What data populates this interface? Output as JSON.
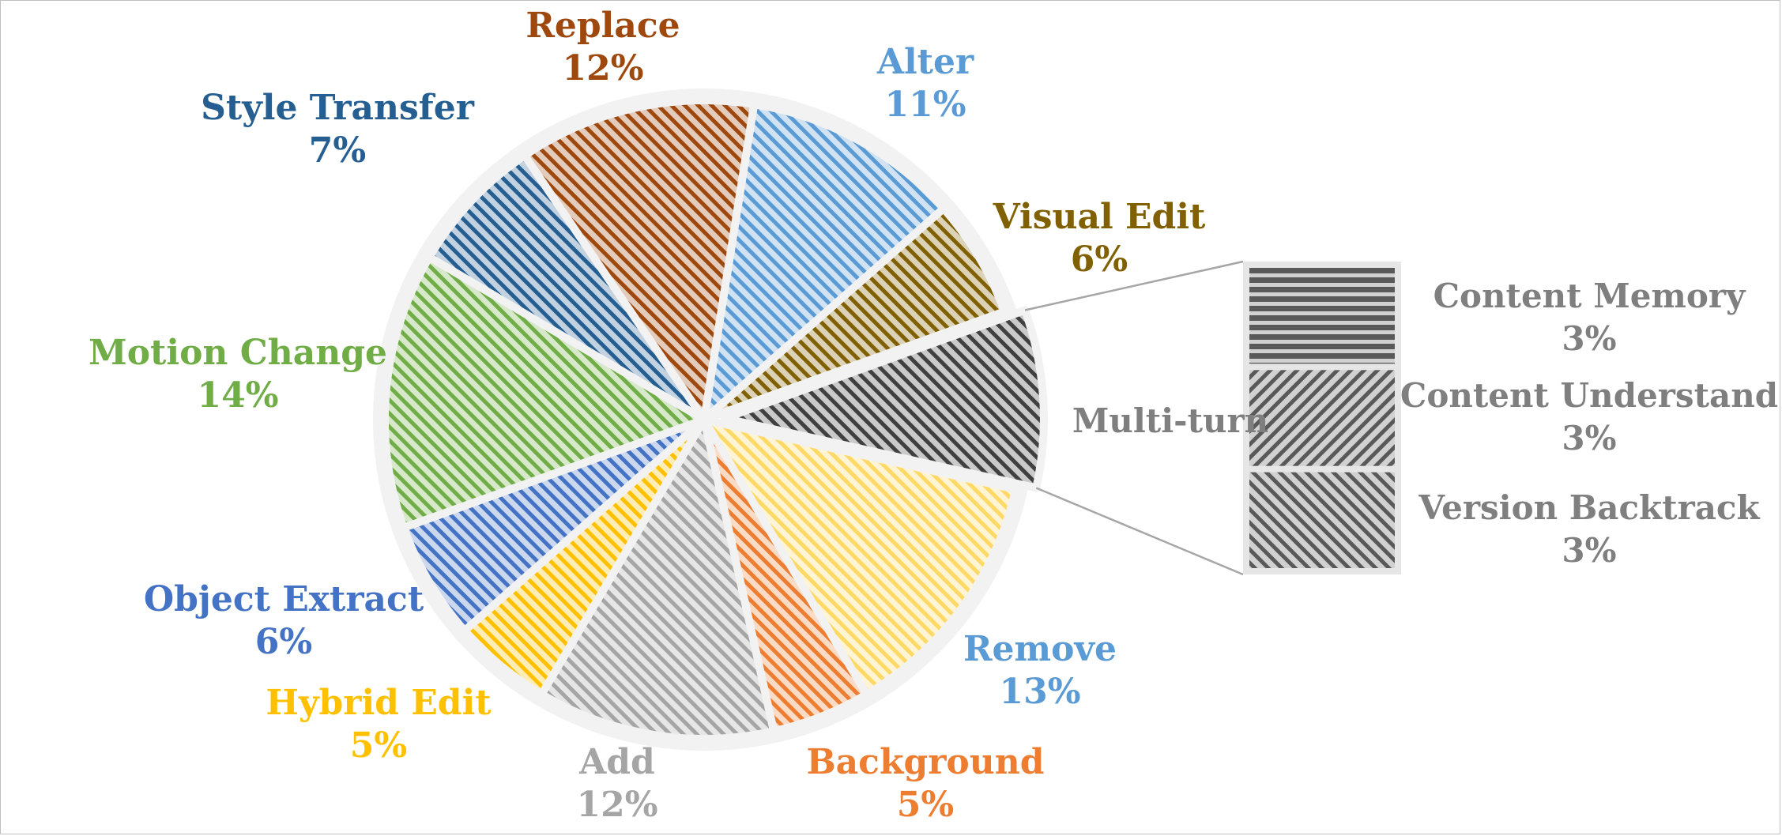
{
  "chart_data": {
    "type": "pie",
    "subtype": "bar-of-pie",
    "slices": [
      {
        "label": "Alter",
        "value": 11,
        "display": "11%",
        "color": "#5b9bd5"
      },
      {
        "label": "Visual Edit",
        "value": 6,
        "display": "6%",
        "color": "#806000"
      },
      {
        "label": "Multi-turn",
        "value": 9,
        "display": "",
        "color": "#404040"
      },
      {
        "label": "Remove",
        "value": 13,
        "display": "13%",
        "color": "#ffd966"
      },
      {
        "label": "Background",
        "value": 5,
        "display": "5%",
        "color": "#ed7d31"
      },
      {
        "label": "Add",
        "value": 12,
        "display": "12%",
        "color": "#a5a5a5"
      },
      {
        "label": "Hybrid Edit",
        "value": 5,
        "display": "5%",
        "color": "#ffc000"
      },
      {
        "label": "Object Extract",
        "value": 6,
        "display": "6%",
        "color": "#4472c4"
      },
      {
        "label": "Motion Change",
        "value": 14,
        "display": "14%",
        "color": "#70ad47"
      },
      {
        "label": "Style Transfer",
        "value": 7,
        "display": "7%",
        "color": "#255e91"
      },
      {
        "label": "Replace",
        "value": 12,
        "display": "12%",
        "color": "#9e480e"
      }
    ],
    "breakdown": {
      "parent": "Multi-turn",
      "items": [
        {
          "label": "Content Memory",
          "value": 3,
          "display": "3%",
          "pattern": "horizontal"
        },
        {
          "label": "Content Understand",
          "value": 3,
          "display": "3%",
          "pattern": "diagonal-down"
        },
        {
          "label": "Version Backtrack",
          "value": 3,
          "display": "3%",
          "pattern": "diagonal-up"
        }
      ]
    },
    "label_colors": {
      "Alter": "#5b9bd5",
      "Visual Edit": "#806000",
      "Multi-turn": "#7f7f7f",
      "Remove": "#5b9bd5",
      "Background": "#ed7d31",
      "Add": "#a5a5a5",
      "Hybrid Edit": "#ffc000",
      "Object Extract": "#4472c4",
      "Motion Change": "#70ad47",
      "Style Transfer": "#255e91",
      "Replace": "#9e480e",
      "breakdown": "#7f7f7f"
    }
  }
}
